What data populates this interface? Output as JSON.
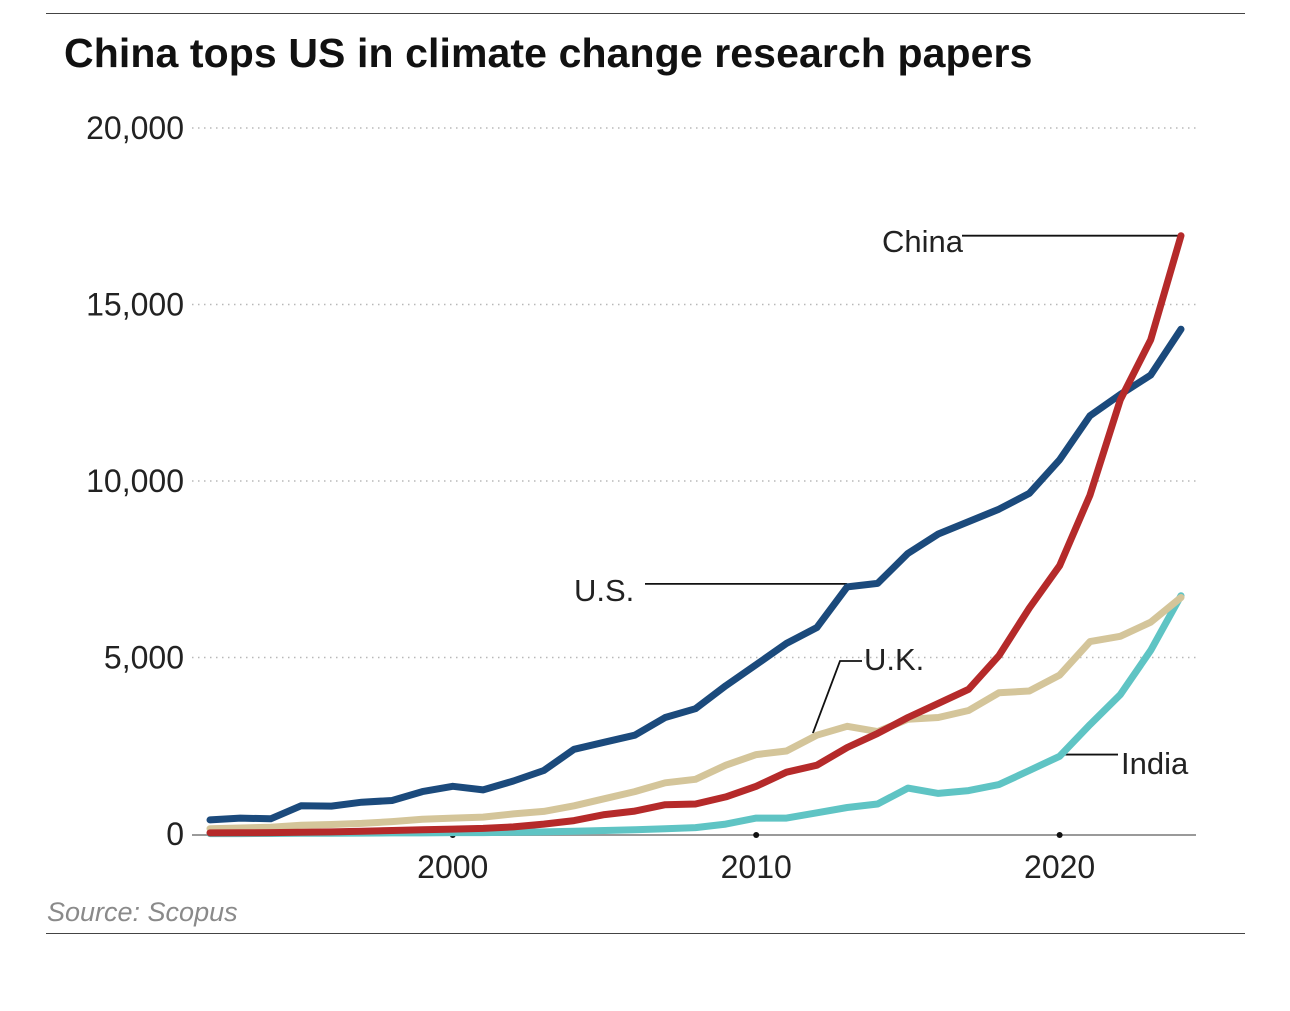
{
  "chart_data": {
    "type": "line",
    "title": "China tops US in climate change research papers",
    "source": "Source: Scopus",
    "xlabel": "",
    "ylabel": "",
    "xlim": [
      1992,
      2025
    ],
    "ylim": [
      0,
      20000
    ],
    "x_ticks": [
      2000,
      2010,
      2020
    ],
    "y_ticks": [
      0,
      5000,
      10000,
      15000,
      20000
    ],
    "y_tick_labels": [
      "0",
      "5,000",
      "10,000",
      "15,000",
      "20,000"
    ],
    "grid": "horizontal-dotted",
    "x": [
      1992,
      1993,
      1994,
      1995,
      1996,
      1997,
      1998,
      1999,
      2000,
      2001,
      2002,
      2003,
      2004,
      2005,
      2006,
      2007,
      2008,
      2009,
      2010,
      2011,
      2012,
      2013,
      2014,
      2015,
      2016,
      2017,
      2018,
      2019,
      2020,
      2021,
      2022,
      2023,
      2024
    ],
    "series": [
      {
        "name": "U.S.",
        "color": "#1b4a7c",
        "values": [
          400,
          450,
          430,
          800,
          790,
          900,
          950,
          1200,
          1350,
          1250,
          1500,
          1800,
          2400,
          2600,
          2800,
          3300,
          3550,
          4200,
          4800,
          5400,
          5850,
          7000,
          7100,
          7950,
          8500,
          8850,
          9200,
          9650,
          10600,
          11850,
          12450,
          13000,
          14300
        ]
      },
      {
        "name": "China",
        "color": "#b52a2a",
        "values": [
          30,
          35,
          40,
          50,
          60,
          80,
          100,
          120,
          140,
          160,
          200,
          280,
          380,
          550,
          650,
          830,
          850,
          1050,
          1350,
          1750,
          1950,
          2450,
          2850,
          3300,
          3700,
          4100,
          5050,
          6400,
          7600,
          9600,
          12300,
          14000,
          16950
        ]
      },
      {
        "name": "U.K.",
        "color": "#d4c59a",
        "values": [
          150,
          170,
          190,
          250,
          270,
          300,
          350,
          420,
          450,
          480,
          570,
          640,
          800,
          1000,
          1200,
          1450,
          1550,
          1950,
          2250,
          2350,
          2800,
          3050,
          2900,
          3250,
          3300,
          3500,
          4000,
          4050,
          4500,
          5450,
          5600,
          6000,
          6700
        ]
      },
      {
        "name": "India",
        "color": "#5fc4c4",
        "values": [
          10,
          10,
          15,
          20,
          20,
          25,
          30,
          30,
          40,
          40,
          50,
          60,
          80,
          100,
          120,
          150,
          180,
          280,
          450,
          450,
          600,
          750,
          850,
          1300,
          1150,
          1230,
          1400,
          1800,
          2200,
          3100,
          3950,
          5200,
          6750
        ]
      }
    ],
    "annotations": [
      {
        "label": "China",
        "series": "China"
      },
      {
        "label": "U.S.",
        "series": "U.S."
      },
      {
        "label": "U.K.",
        "series": "U.K."
      },
      {
        "label": "India",
        "series": "India"
      }
    ]
  }
}
